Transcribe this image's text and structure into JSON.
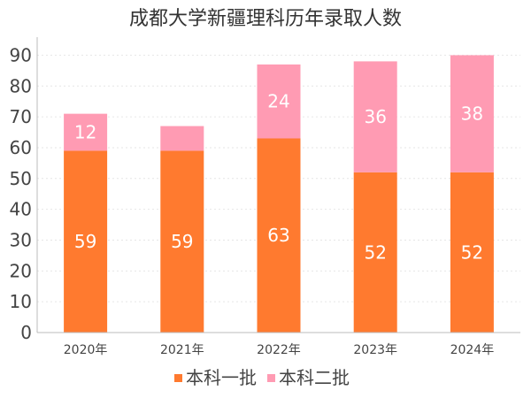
{
  "chart_data": {
    "type": "bar",
    "stacked": true,
    "title": "成都大学新疆理科历年录取人数",
    "categories": [
      "2020年",
      "2021年",
      "2022年",
      "2023年",
      "2024年"
    ],
    "series": [
      {
        "name": "本科一批",
        "color": "#FF7A2F",
        "values": [
          59,
          59,
          63,
          52,
          52
        ],
        "labels": [
          "59",
          "59",
          "63",
          "52",
          "52"
        ]
      },
      {
        "name": "本科二批",
        "color": "#FF9BB3",
        "values": [
          12,
          8,
          24,
          36,
          38
        ],
        "labels": [
          "12",
          "",
          "24",
          "36",
          "38"
        ]
      }
    ],
    "ylim": [
      0,
      95
    ],
    "yticks": [
      0,
      10,
      20,
      30,
      40,
      50,
      60,
      70,
      80,
      90
    ],
    "grid": true,
    "legend_position": "bottom"
  }
}
